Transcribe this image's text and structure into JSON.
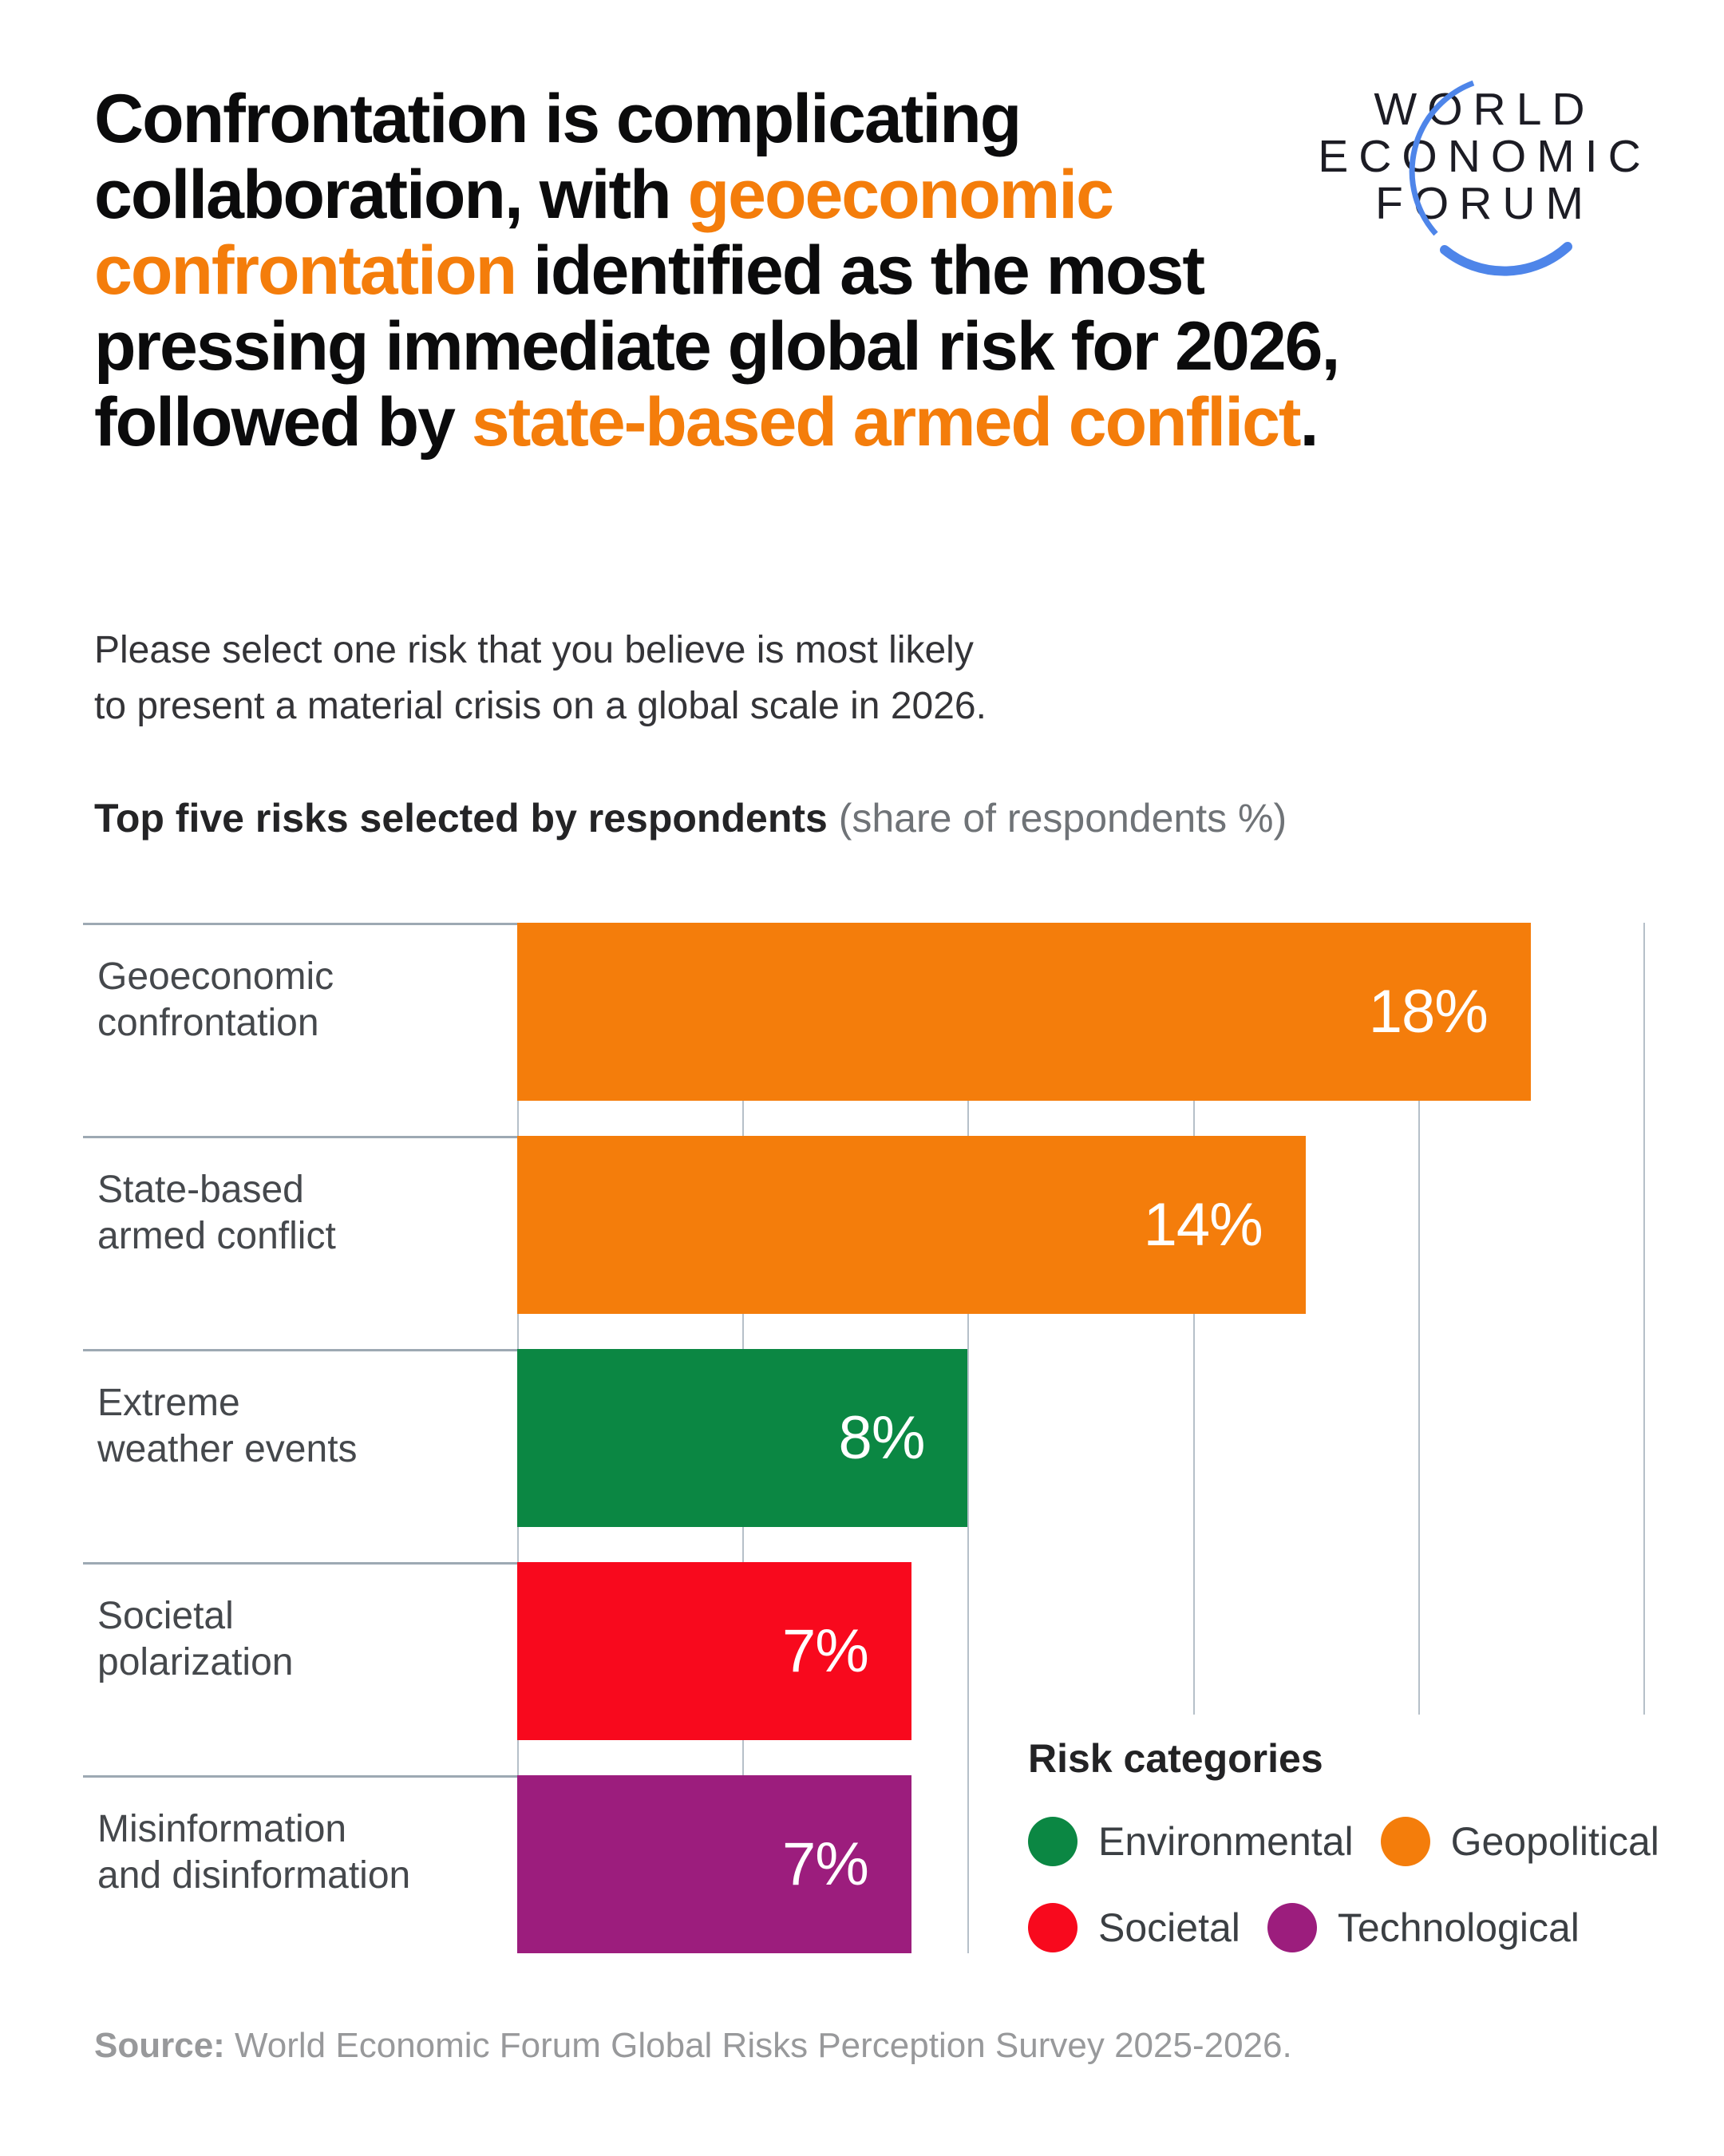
{
  "header": {
    "title_segments": [
      {
        "text": "Confrontation is complicating\ncollaboration, with ",
        "highlight": false
      },
      {
        "text": "geoeconomic\nconfrontation",
        "highlight": true
      },
      {
        "text": " identified as the most\npressing immediate global risk for 2026,\nfollowed by ",
        "highlight": false
      },
      {
        "text": "state-based armed conflict",
        "highlight": true
      },
      {
        "text": ".",
        "highlight": false
      }
    ],
    "logo_lines": "WORLD\nECONOMIC\nFORUM"
  },
  "intro": {
    "question": "Please select one risk that you believe is most likely\nto present a material crisis on a global scale in 2026."
  },
  "chart_heading": {
    "bold": "Top five risks selected by respondents",
    "note": " (share of respondents %)"
  },
  "chart_data": {
    "type": "bar",
    "orientation": "horizontal",
    "title": "Top five risks selected by respondents",
    "unit": "share of respondents %",
    "categories": [
      "Geoeconomic confrontation",
      "State-based armed conflict",
      "Extreme weather events",
      "Societal polarization",
      "Misinformation and disinformation"
    ],
    "display_labels": [
      "Geoeconomic\nconfrontation",
      "State-based\narmed conflict",
      "Extreme\nweather events",
      "Societal\npolarization",
      "Misinformation\nand disinformation"
    ],
    "values": [
      18,
      14,
      8,
      7,
      7
    ],
    "value_labels": [
      "18%",
      "14%",
      "8%",
      "7%",
      "7%"
    ],
    "risk_category": [
      "Geopolitical",
      "Geopolitical",
      "Environmental",
      "Societal",
      "Technological"
    ],
    "xlim": [
      0,
      20
    ],
    "gridlines_percent": [
      0,
      4,
      8,
      12,
      16,
      20
    ],
    "grid": true,
    "tick_labels_shown": false,
    "legend_position": "bottom-right"
  },
  "legend": {
    "title": "Risk categories",
    "items": [
      {
        "label": "Environmental",
        "category": "Environmental"
      },
      {
        "label": "Geopolitical",
        "category": "Geopolitical"
      },
      {
        "label": "Societal",
        "category": "Societal"
      },
      {
        "label": "Technological",
        "category": "Technological"
      }
    ]
  },
  "colors": {
    "Environmental": "#0B8743",
    "Geopolitical": "#F47D0B",
    "Societal": "#F8091D",
    "Technological": "#9C1D7D",
    "title_highlight": "#F47D0B",
    "logo_arc_blue": "#4E85E9",
    "gridline": "#B6C0C9",
    "separator": "#9DA9B3"
  },
  "source": {
    "label": "Source:",
    "text": " World Economic Forum Global Risks Perception Survey 2025-2026."
  }
}
